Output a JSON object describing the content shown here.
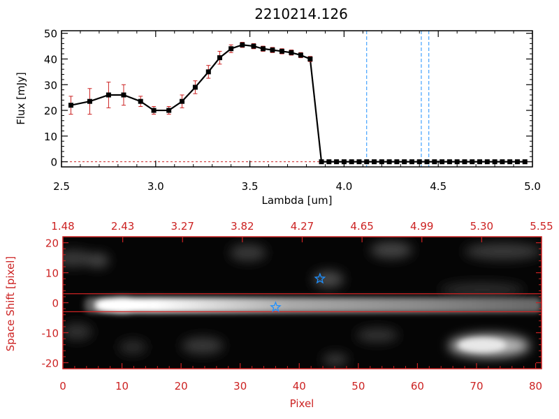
{
  "chart_data": [
    {
      "type": "line",
      "title": "2210214.126",
      "xlabel": "Lambda [um]",
      "ylabel": "Flux [mJy]",
      "xlim": [
        2.5,
        5.0
      ],
      "ylim": [
        -2,
        51
      ],
      "xticks": [
        "2.5",
        "3.0",
        "3.5",
        "4.0",
        "4.5",
        "5.0"
      ],
      "yticks": [
        "0",
        "10",
        "20",
        "30",
        "40",
        "50"
      ],
      "x": [
        2.55,
        2.65,
        2.75,
        2.83,
        2.92,
        2.99,
        3.07,
        3.14,
        3.21,
        3.28,
        3.34,
        3.4,
        3.46,
        3.52,
        3.57,
        3.62,
        3.67,
        3.72,
        3.77,
        3.82,
        3.88,
        3.92,
        3.96,
        4.0,
        4.04,
        4.08,
        4.12,
        4.16,
        4.2,
        4.24,
        4.28,
        4.32,
        4.36,
        4.4,
        4.44,
        4.48,
        4.52,
        4.56,
        4.6,
        4.64,
        4.68,
        4.72,
        4.76,
        4.8,
        4.84,
        4.88,
        4.92,
        4.96
      ],
      "y": [
        22,
        23.5,
        26,
        26,
        23.5,
        20,
        20,
        23.5,
        29,
        35,
        40.5,
        44,
        45.5,
        45,
        44,
        43.5,
        43,
        42.5,
        41.5,
        40,
        0,
        0,
        0,
        0,
        0,
        0,
        0,
        0,
        0,
        0,
        0,
        0,
        0,
        0,
        0,
        0,
        0,
        0,
        0,
        0,
        0,
        0,
        0,
        0,
        0,
        0,
        0,
        0
      ],
      "yerr": [
        3.5,
        5,
        5,
        4,
        2,
        1.5,
        1.5,
        2.5,
        2.5,
        2.5,
        2.5,
        1.5,
        1,
        1,
        1,
        1,
        1,
        1,
        1,
        1,
        0,
        0,
        0,
        0,
        0,
        0,
        0,
        0,
        0,
        0,
        0,
        0,
        0,
        0,
        0,
        0,
        0,
        0,
        0,
        0,
        0,
        0,
        0,
        0,
        0,
        0,
        0,
        0
      ],
      "vlines": [
        4.12,
        4.41,
        4.45
      ],
      "colors": {
        "line": "#000000",
        "marker": "#000000",
        "errorbar": "#cc2222",
        "vline": "#1e90ff",
        "zero": "#cc2222"
      }
    },
    {
      "type": "heatmap",
      "xlabel": "Pixel",
      "ylabel": "Space Shift [pixel]",
      "xlim": [
        0,
        81
      ],
      "ylim": [
        -22,
        22
      ],
      "xticks": [
        "0",
        "10",
        "20",
        "30",
        "40",
        "50",
        "60",
        "70",
        "80"
      ],
      "yticks": [
        "-20",
        "-10",
        "0",
        "10",
        "20"
      ],
      "top_ticks": [
        "1.48",
        "2.43",
        "3.27",
        "3.82",
        "4.27",
        "4.65",
        "4.99",
        "5.30",
        "5.55"
      ],
      "extraction_window": [
        -3,
        3
      ],
      "markers": [
        {
          "name": "source-star-marker",
          "x": 43.5,
          "y": 8
        },
        {
          "name": "target-star-marker",
          "x": 36,
          "y": -1.5
        }
      ],
      "colors": {
        "axis": "#cc2222",
        "frame": "#cc2222",
        "marker": "#1e90ff"
      }
    }
  ]
}
